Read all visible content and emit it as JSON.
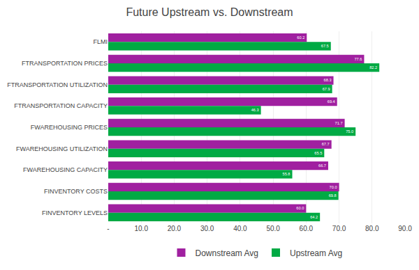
{
  "chart_data": {
    "type": "bar",
    "orientation": "horizontal",
    "title": "Future Upstream vs. Downstream",
    "categories": [
      "FLMI",
      "FTRANSPORTATION PRICES",
      "FTRANSPORTATION UTILIZATION",
      "FTRANSPORTATION CAPACITY",
      "FWAREHOUSING PRICES",
      "FWAREHOUSING UTILIZATION",
      "FWAREHOUSING CAPACITY",
      "FINVENTORY COSTS",
      "FINVENTORY LEVELS"
    ],
    "series": [
      {
        "name": "Downstream Avg",
        "color": "#A020A0",
        "values": [
          60.2,
          77.6,
          68.3,
          69.4,
          71.7,
          67.7,
          66.7,
          70.0,
          60.0
        ],
        "value_labels": [
          "60.2",
          "77.6",
          "68.3",
          "69.4",
          "71.7",
          "67.7",
          "66.7",
          "70.0",
          "60.0"
        ]
      },
      {
        "name": "Upstream Avg",
        "color": "#00AA44",
        "values": [
          67.5,
          82.2,
          67.9,
          46.3,
          75.0,
          65.5,
          55.8,
          69.8,
          64.2
        ],
        "value_labels": [
          "67.5",
          "82.2",
          "67.9",
          "46.3",
          "75.0",
          "65.5",
          "55.8",
          "69.8",
          "64.2"
        ]
      }
    ],
    "xlim": [
      0,
      90
    ],
    "xticks": [
      {
        "value": 0,
        "label": "-"
      },
      {
        "value": 10,
        "label": "10.0"
      },
      {
        "value": 20,
        "label": "20.0"
      },
      {
        "value": 30,
        "label": "30.0"
      },
      {
        "value": 40,
        "label": "40.0"
      },
      {
        "value": 50,
        "label": "50.0"
      },
      {
        "value": 60,
        "label": "60.0"
      },
      {
        "value": 70,
        "label": "70.0"
      },
      {
        "value": 80,
        "label": "80.0"
      },
      {
        "value": 90,
        "label": "90.0"
      }
    ],
    "grid": true,
    "legend": "bottom",
    "data_labels": true
  }
}
